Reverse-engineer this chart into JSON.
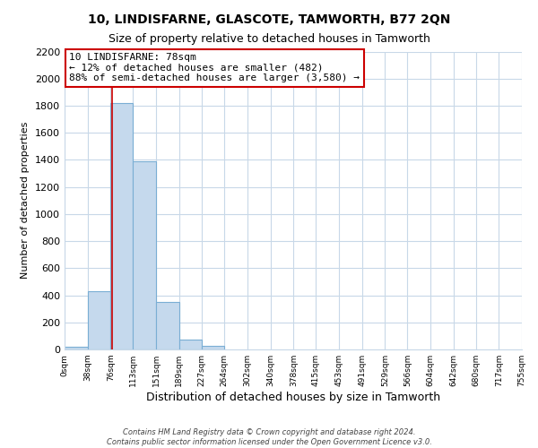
{
  "title": "10, LINDISFARNE, GLASCOTE, TAMWORTH, B77 2QN",
  "subtitle": "Size of property relative to detached houses in Tamworth",
  "xlabel": "Distribution of detached houses by size in Tamworth",
  "ylabel": "Number of detached properties",
  "bin_edges": [
    0,
    38,
    76,
    113,
    151,
    189,
    227,
    264,
    302,
    340,
    378,
    415,
    453,
    491,
    529,
    566,
    604,
    642,
    680,
    717,
    755
  ],
  "bin_labels": [
    "0sqm",
    "38sqm",
    "76sqm",
    "113sqm",
    "151sqm",
    "189sqm",
    "227sqm",
    "264sqm",
    "302sqm",
    "340sqm",
    "378sqm",
    "415sqm",
    "453sqm",
    "491sqm",
    "529sqm",
    "566sqm",
    "604sqm",
    "642sqm",
    "680sqm",
    "717sqm",
    "755sqm"
  ],
  "bar_heights": [
    20,
    430,
    1820,
    1390,
    350,
    75,
    25,
    0,
    0,
    0,
    0,
    0,
    0,
    0,
    0,
    0,
    0,
    0,
    0,
    0
  ],
  "bar_color": "#c5d9ed",
  "bar_edge_color": "#7aaed4",
  "property_value": 78,
  "property_line_color": "#cc0000",
  "annotation_line1": "10 LINDISFARNE: 78sqm",
  "annotation_line2": "← 12% of detached houses are smaller (482)",
  "annotation_line3": "88% of semi-detached houses are larger (3,580) →",
  "annotation_box_color": "#ffffff",
  "annotation_box_edge": "#cc0000",
  "ylim": [
    0,
    2200
  ],
  "yticks": [
    0,
    200,
    400,
    600,
    800,
    1000,
    1200,
    1400,
    1600,
    1800,
    2000,
    2200
  ],
  "footer1": "Contains HM Land Registry data © Crown copyright and database right 2024.",
  "footer2": "Contains public sector information licensed under the Open Government Licence v3.0.",
  "bg_color": "#ffffff",
  "grid_color": "#c8d8e8",
  "title_fontsize": 10,
  "subtitle_fontsize": 9,
  "annot_fontsize": 8,
  "ylabel_fontsize": 8,
  "xlabel_fontsize": 9
}
